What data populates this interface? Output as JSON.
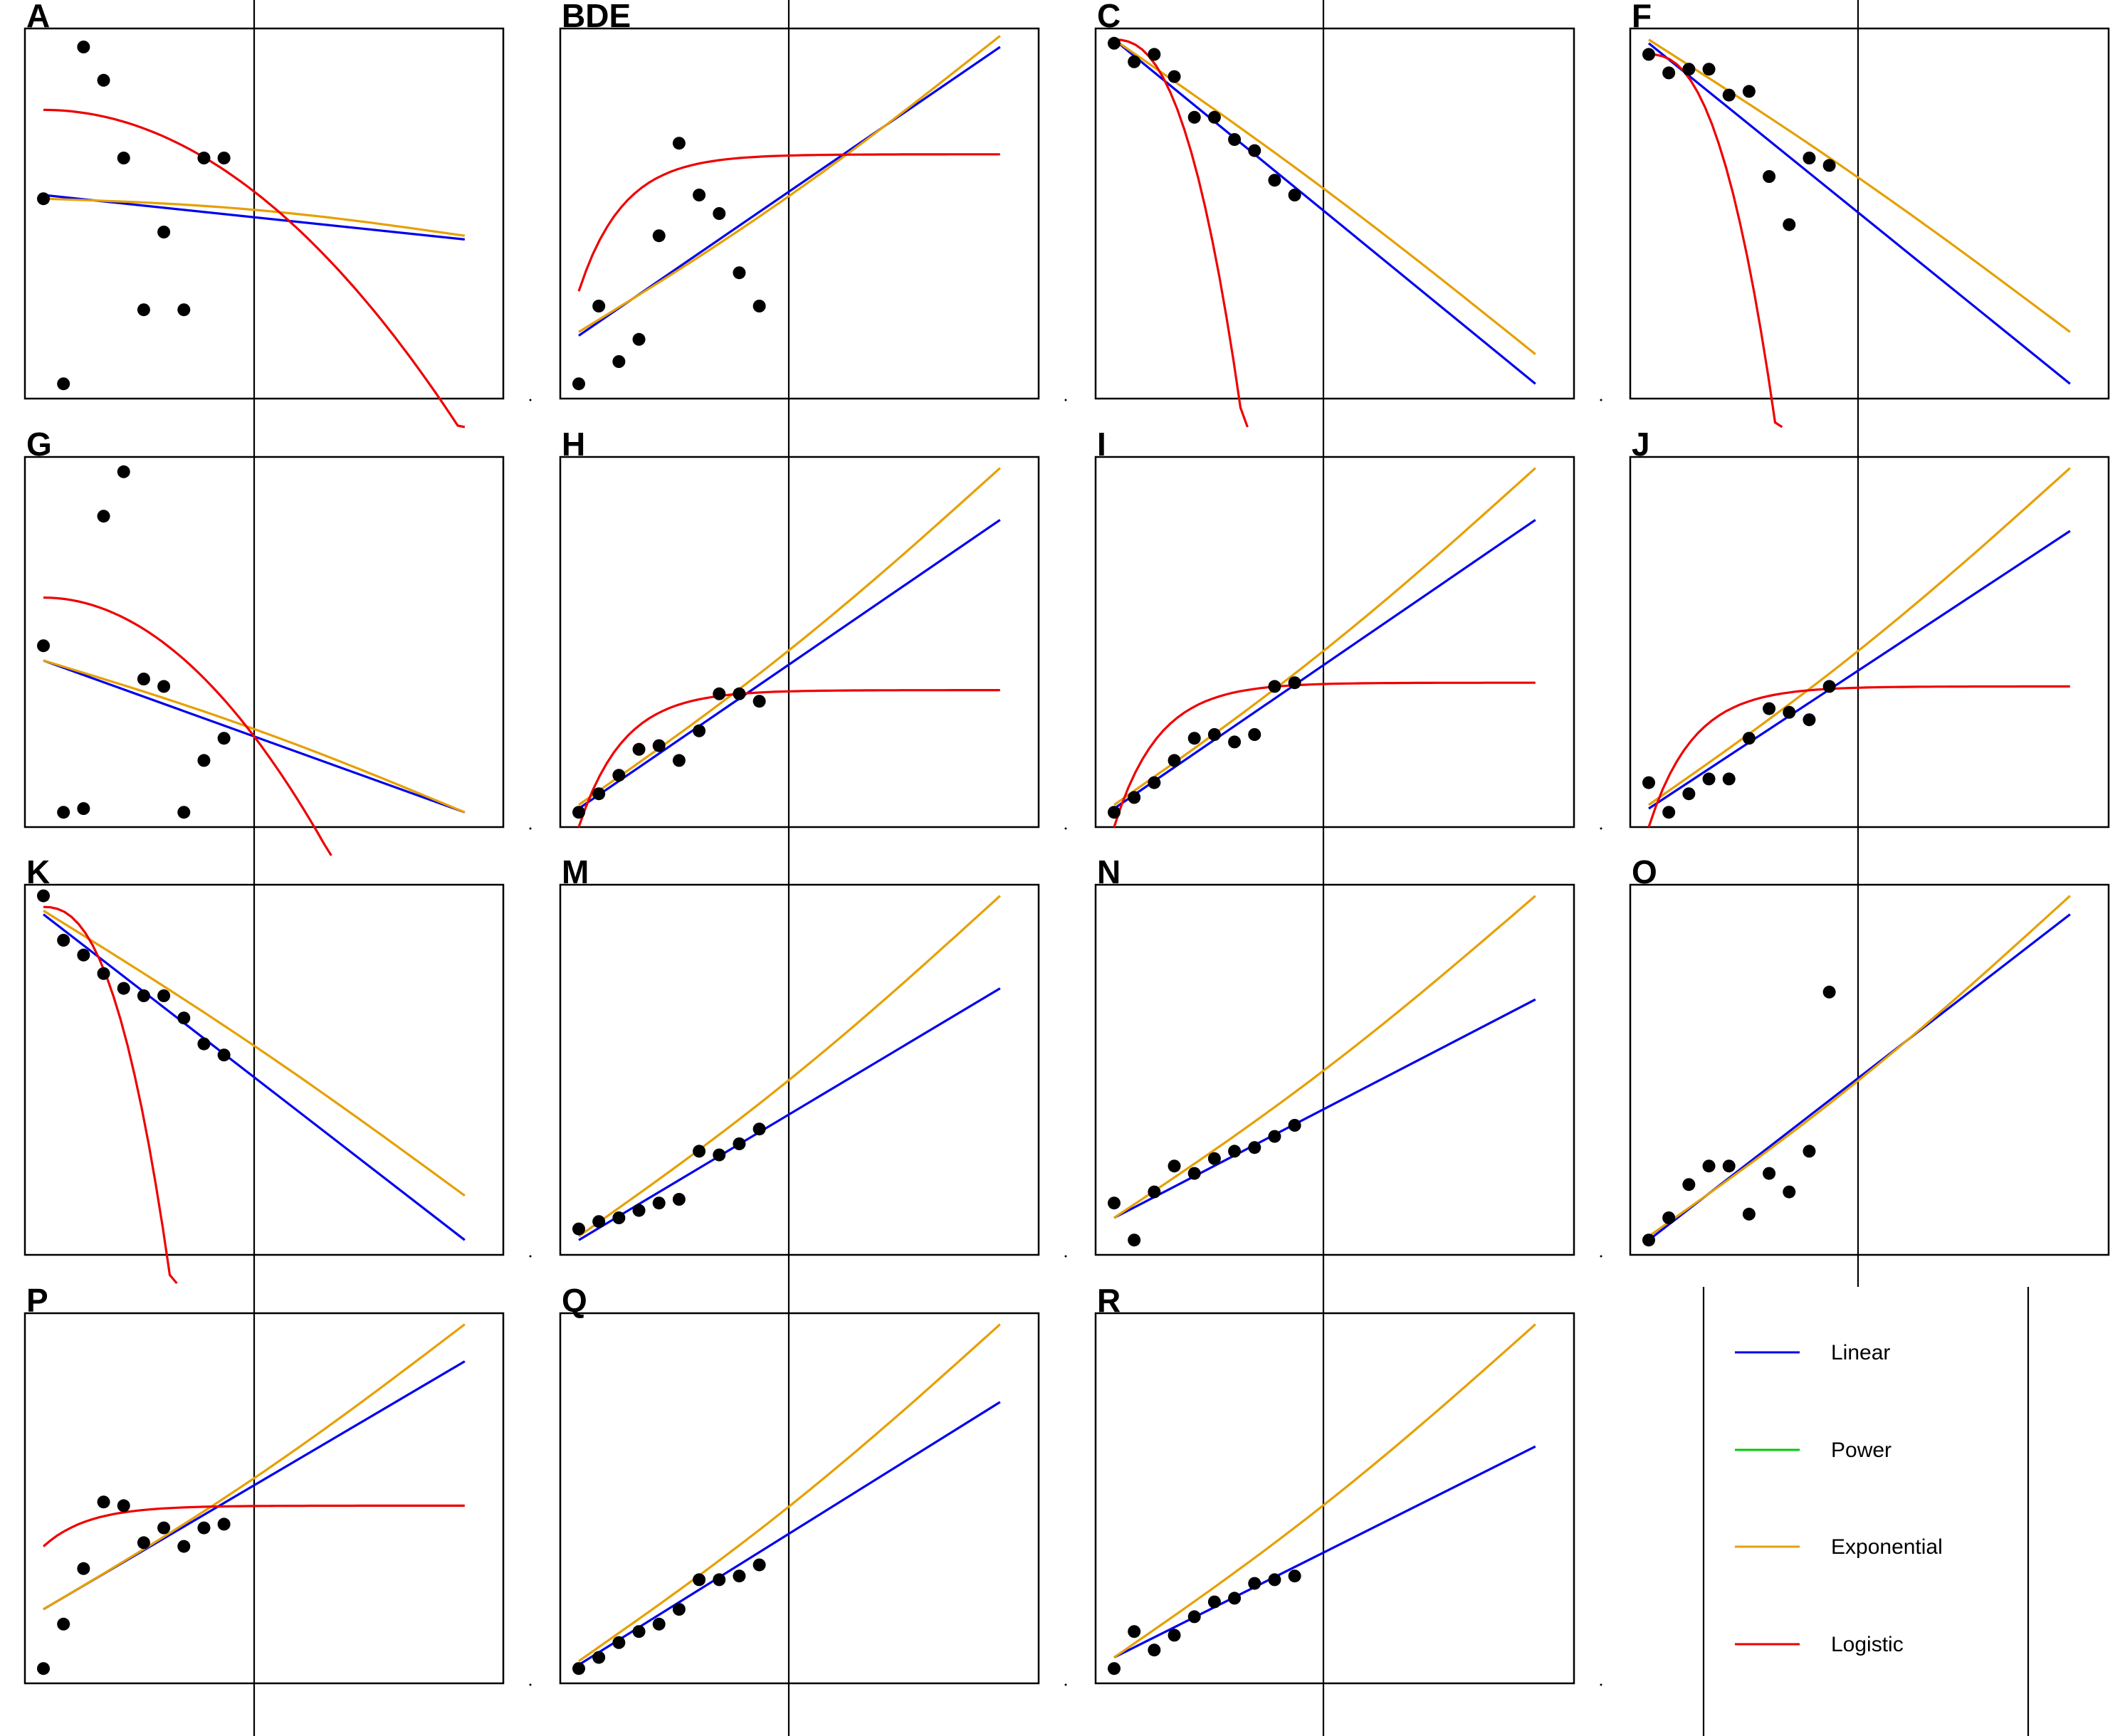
{
  "chart_data": {
    "type": "scatter",
    "layout": "4x4 grid of small-multiple panels with a legend panel",
    "fit_colors": {
      "Linear": "#0000ee",
      "Power": "#00cc00",
      "Exponential": "#e6a000",
      "Logistic": "#ee0000"
    },
    "point_color": "#000000",
    "legend": {
      "placement": "bottom-right",
      "entries": [
        {
          "label": "Linear",
          "color": "#0000ee"
        },
        {
          "label": "Power",
          "color": "#00cc00"
        },
        {
          "label": "Exponential",
          "color": "#e6a000"
        },
        {
          "label": "Logistic",
          "color": "#ee0000"
        }
      ]
    },
    "xlim": [
      0,
      22
    ],
    "ylim": [
      0,
      1
    ],
    "reference_line_x": 10.5,
    "panels": [
      {
        "label": "A",
        "x": [
          0,
          1,
          2,
          3,
          4,
          5,
          6,
          7,
          8,
          9
        ],
        "y": [
          0.54,
          0.04,
          0.95,
          0.86,
          0.65,
          0.24,
          0.45,
          0.24,
          0.65,
          0.65
        ],
        "linear": [
          0.55,
          0.43
        ],
        "exponential": [
          0.54,
          0.44
        ],
        "logistic": {
          "x0": 0,
          "y0": 0.78,
          "y10": 0.58,
          "y21": 0.0
        }
      },
      {
        "label": "BDE",
        "x": [
          0,
          1,
          2,
          3,
          4,
          5,
          6,
          7,
          8,
          9
        ],
        "y": [
          0.04,
          0.25,
          0.1,
          0.16,
          0.44,
          0.69,
          0.55,
          0.5,
          0.34,
          0.25
        ],
        "linear": [
          0.17,
          0.95
        ],
        "exponential": [
          0.18,
          0.98
        ],
        "logistic": {
          "x0": 0,
          "y0": 0.29,
          "y10": 0.58,
          "y21": 0.66
        }
      },
      {
        "label": "C",
        "x": [
          0,
          1,
          2,
          3,
          4,
          5,
          6,
          7,
          8,
          9
        ],
        "y": [
          0.96,
          0.91,
          0.93,
          0.87,
          0.76,
          0.76,
          0.7,
          0.67,
          0.59,
          0.55
        ],
        "linear": [
          0.97,
          0.04
        ],
        "exponential": [
          0.97,
          0.12
        ],
        "logistic": {
          "x0": 0,
          "y0": 0.97,
          "y10": -0.08,
          "y21": -0.08
        }
      },
      {
        "label": "F",
        "x": [
          0,
          1,
          2,
          3,
          4,
          5,
          6,
          7,
          8,
          9
        ],
        "y": [
          0.93,
          0.88,
          0.89,
          0.89,
          0.82,
          0.83,
          0.6,
          0.47,
          0.65,
          0.63
        ],
        "linear": [
          0.96,
          0.04
        ],
        "exponential": [
          0.97,
          0.18
        ],
        "logistic": {
          "x0": 0,
          "y0": 0.93,
          "y10": -0.08,
          "y21": -0.08
        }
      },
      {
        "label": "G",
        "x": [
          0,
          1,
          2,
          3,
          4,
          5,
          6,
          7,
          8,
          9
        ],
        "y": [
          0.49,
          0.04,
          0.05,
          0.84,
          0.96,
          0.4,
          0.38,
          0.04,
          0.18,
          0.24
        ],
        "linear": [
          0.45,
          0.04
        ],
        "exponential": [
          0.45,
          0.04
        ],
        "logistic": {
          "x0": 0,
          "y0": 0.62,
          "y10": 0.28,
          "y21": -0.08
        }
      },
      {
        "label": "H",
        "x": [
          0,
          1,
          2,
          3,
          4,
          5,
          6,
          7,
          8,
          9
        ],
        "y": [
          0.04,
          0.09,
          0.14,
          0.21,
          0.22,
          0.18,
          0.26,
          0.36,
          0.36,
          0.34
        ],
        "linear": [
          0.05,
          0.83
        ],
        "exponential": [
          0.06,
          0.97
        ],
        "logistic": {
          "x0": 0,
          "y0": 0.0,
          "y10": 0.37,
          "y21": 0.37
        }
      },
      {
        "label": "I",
        "x": [
          0,
          1,
          2,
          3,
          4,
          5,
          6,
          7,
          8,
          9
        ],
        "y": [
          0.04,
          0.08,
          0.12,
          0.18,
          0.24,
          0.25,
          0.23,
          0.25,
          0.38,
          0.39
        ],
        "linear": [
          0.05,
          0.83
        ],
        "exponential": [
          0.06,
          0.97
        ],
        "logistic": {
          "x0": 0,
          "y0": 0.0,
          "y10": 0.39,
          "y21": 0.39
        }
      },
      {
        "label": "J",
        "x": [
          0,
          1,
          2,
          3,
          4,
          5,
          6,
          7,
          8,
          9
        ],
        "y": [
          0.12,
          0.04,
          0.09,
          0.13,
          0.13,
          0.24,
          0.32,
          0.31,
          0.29,
          0.38
        ],
        "linear": [
          0.05,
          0.8
        ],
        "exponential": [
          0.06,
          0.97
        ],
        "logistic": {
          "x0": 0,
          "y0": 0.0,
          "y10": 0.38,
          "y21": 0.38
        }
      },
      {
        "label": "K",
        "x": [
          0,
          1,
          2,
          3,
          4,
          5,
          6,
          7,
          8,
          9
        ],
        "y": [
          0.97,
          0.85,
          0.81,
          0.76,
          0.72,
          0.7,
          0.7,
          0.64,
          0.57,
          0.54
        ],
        "linear": [
          0.92,
          0.04
        ],
        "exponential": [
          0.93,
          0.16
        ],
        "logistic": {
          "x0": 0,
          "y0": 0.94,
          "y10": -0.08,
          "y21": -0.08
        }
      },
      {
        "label": "M",
        "x": [
          0,
          1,
          2,
          3,
          4,
          5,
          6,
          7,
          8,
          9
        ],
        "y": [
          0.07,
          0.09,
          0.1,
          0.12,
          0.14,
          0.15,
          0.28,
          0.27,
          0.3,
          0.34
        ],
        "linear": [
          0.04,
          0.72
        ],
        "exponential": [
          0.05,
          0.97
        ],
        "logistic": {
          "x0": 0,
          "y0": -0.08,
          "y10": 0.34,
          "y21": 0.34
        }
      },
      {
        "label": "N",
        "x": [
          0,
          1,
          2,
          3,
          4,
          5,
          6,
          7,
          8,
          9
        ],
        "y": [
          0.14,
          0.04,
          0.17,
          0.24,
          0.22,
          0.26,
          0.28,
          0.29,
          0.32,
          0.35
        ],
        "linear": [
          0.1,
          0.69
        ],
        "exponential": [
          0.1,
          0.97
        ],
        "logistic": {
          "x0": 0,
          "y0": -0.08,
          "y10": 0.36,
          "y21": 0.36
        }
      },
      {
        "label": "O",
        "x": [
          0,
          1,
          2,
          3,
          4,
          5,
          6,
          7,
          8,
          9
        ],
        "y": [
          0.04,
          0.1,
          0.19,
          0.24,
          0.24,
          0.11,
          0.22,
          0.17,
          0.28,
          0.71
        ],
        "linear": [
          0.04,
          0.92
        ],
        "exponential": [
          0.05,
          0.97
        ],
        "logistic": {
          "x0": 0,
          "y0": -0.08,
          "y10": 0.7,
          "y21": 0.71
        }
      },
      {
        "label": "P",
        "x": [
          0,
          1,
          2,
          3,
          4,
          5,
          6,
          7,
          8,
          9
        ],
        "y": [
          0.04,
          0.16,
          0.31,
          0.49,
          0.48,
          0.38,
          0.42,
          0.37,
          0.42,
          0.43
        ],
        "linear": [
          0.2,
          0.87
        ],
        "exponential": [
          0.2,
          0.97
        ],
        "logistic": {
          "x0": 0,
          "y0": 0.37,
          "y10": 0.46,
          "y21": 0.48
        }
      },
      {
        "label": "Q",
        "x": [
          0,
          1,
          2,
          3,
          4,
          5,
          6,
          7,
          8,
          9
        ],
        "y": [
          0.04,
          0.07,
          0.11,
          0.14,
          0.16,
          0.2,
          0.28,
          0.28,
          0.29,
          0.32
        ],
        "linear": [
          0.05,
          0.76
        ],
        "exponential": [
          0.06,
          0.97
        ],
        "logistic": {
          "x0": 0,
          "y0": -0.08,
          "y10": 0.32,
          "y21": 0.32
        }
      },
      {
        "label": "R",
        "x": [
          0,
          1,
          2,
          3,
          4,
          5,
          6,
          7,
          8,
          9
        ],
        "y": [
          0.04,
          0.14,
          0.09,
          0.13,
          0.18,
          0.22,
          0.23,
          0.27,
          0.28,
          0.29
        ],
        "linear": [
          0.07,
          0.64
        ],
        "exponential": [
          0.07,
          0.97
        ],
        "logistic": {
          "x0": 0,
          "y0": -0.08,
          "y10": 0.29,
          "y21": 0.29
        }
      }
    ]
  }
}
